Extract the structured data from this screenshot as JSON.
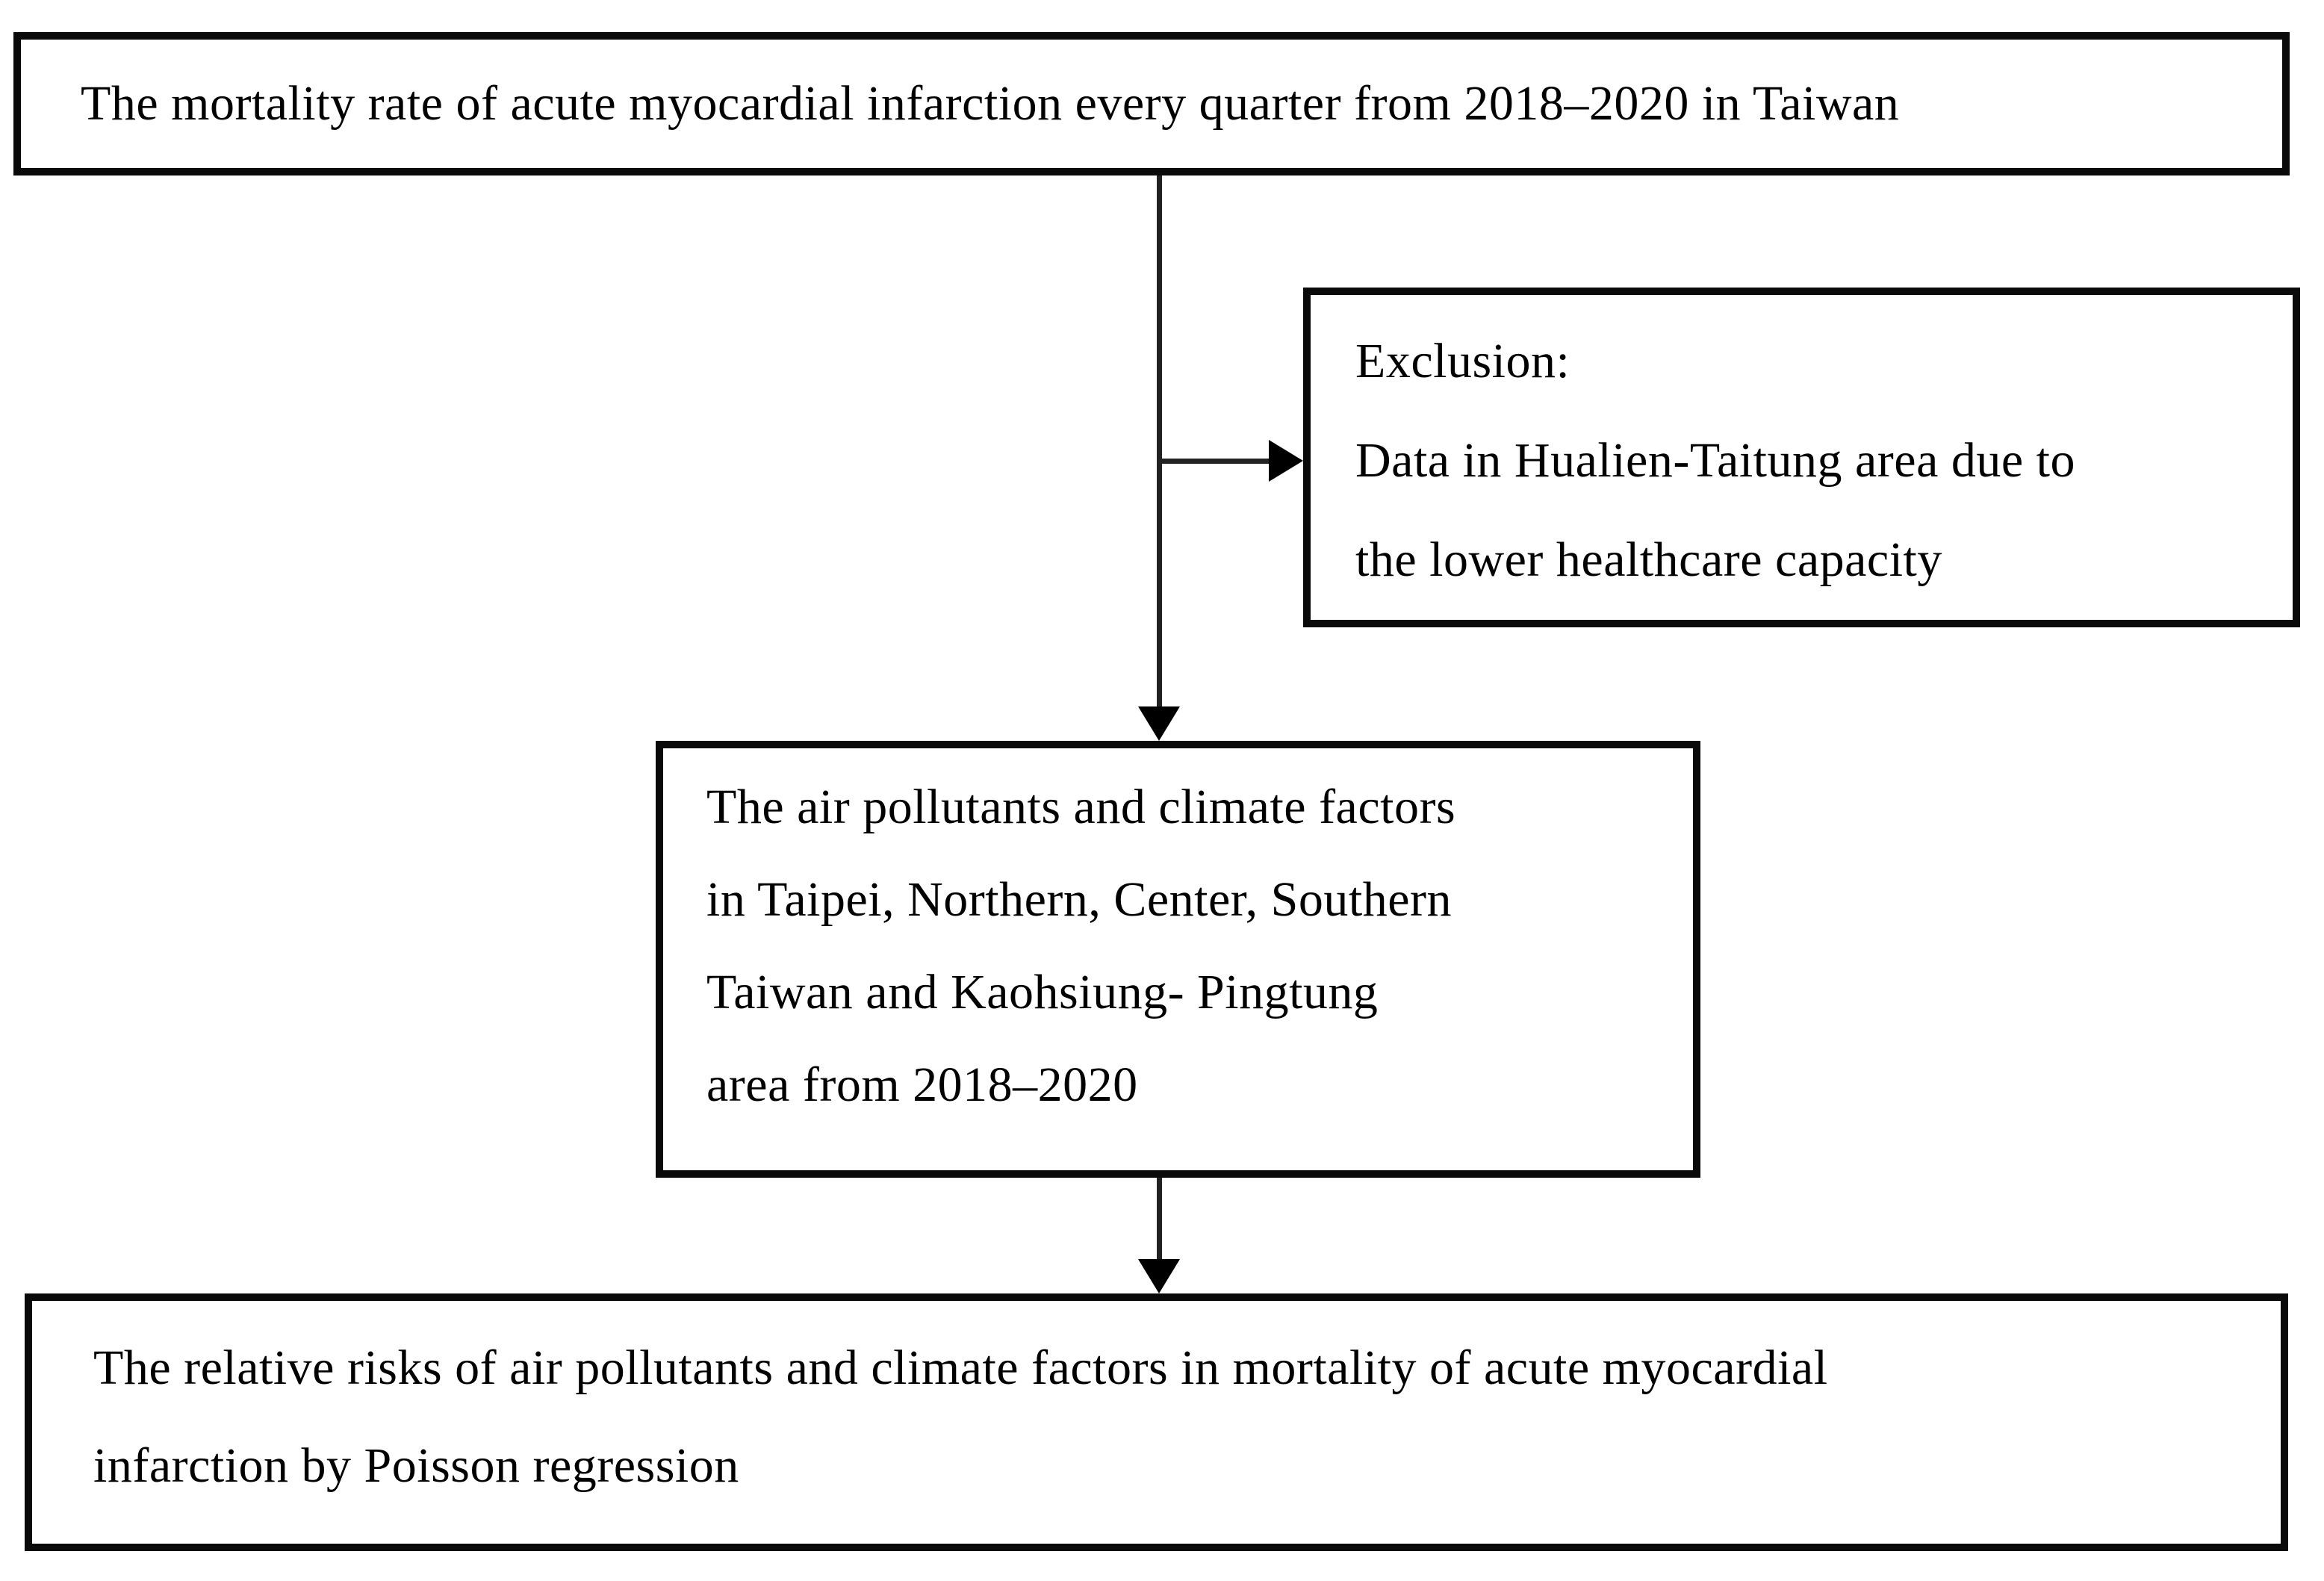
{
  "figure": {
    "type": "study-flow-diagram",
    "colors": {
      "background": "#ffffff",
      "border": "#0a0a0a",
      "text": "#000000",
      "connector": "#222222"
    }
  },
  "boxes": {
    "mortality": {
      "text": "The mortality rate of acute myocardial infarction every quarter from 2018–2020 in Taiwan"
    },
    "exclusion": {
      "lines": [
        "Exclusion:",
        "Data in Hualien-Taitung area due to",
        "the lower healthcare capacity"
      ]
    },
    "pollutants": {
      "lines": [
        "The air pollutants and climate factors",
        "in Taipei, Northern, Center, Southern",
        "Taiwan and Kaohsiung- Pingtung",
        "area from 2018–2020"
      ]
    },
    "relative_risks": {
      "lines": [
        "The relative risks of air pollutants and climate factors in mortality of acute myocardial",
        "infarction by Poisson regression"
      ]
    }
  }
}
